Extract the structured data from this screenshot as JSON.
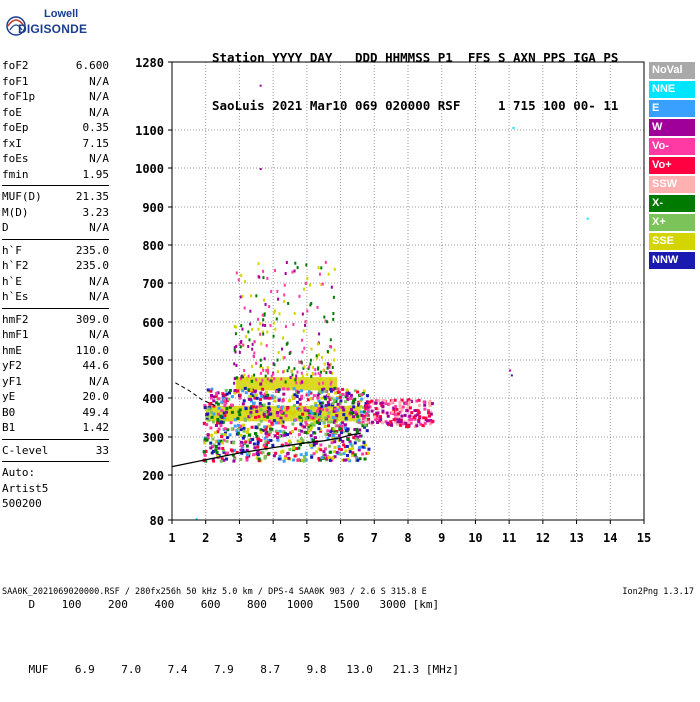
{
  "logo": {
    "brand_line1": "Lowell",
    "brand_line2": "DIGISONDE"
  },
  "header": {
    "line1": "Station YYYY DAY   DDD HHMMSS P1  FFS S AXN PPS IGA PS",
    "line2": "SaoLuis 2021 Mar10 069 020000 RSF     1 715 100 00- 11"
  },
  "parameters": {
    "group1": [
      {
        "name": "foF2",
        "value": "6.600"
      },
      {
        "name": "foF1",
        "value": "N/A"
      },
      {
        "name": "foF1p",
        "value": "N/A"
      },
      {
        "name": "foE",
        "value": "N/A"
      },
      {
        "name": "foEp",
        "value": "0.35"
      },
      {
        "name": "fxI",
        "value": "7.15"
      },
      {
        "name": "foEs",
        "value": "N/A"
      },
      {
        "name": "fmin",
        "value": "1.95"
      }
    ],
    "group2": [
      {
        "name": "MUF(D)",
        "value": "21.35"
      },
      {
        "name": "M(D)",
        "value": "3.23"
      },
      {
        "name": "D",
        "value": "N/A"
      }
    ],
    "group3": [
      {
        "name": "h`F",
        "value": "235.0"
      },
      {
        "name": "h`F2",
        "value": "235.0"
      },
      {
        "name": "h`E",
        "value": "N/A"
      },
      {
        "name": "h`Es",
        "value": "N/A"
      }
    ],
    "group4": [
      {
        "name": "hmF2",
        "value": "309.0"
      },
      {
        "name": "hmF1",
        "value": "N/A"
      },
      {
        "name": "hmE",
        "value": "110.0"
      },
      {
        "name": "yF2",
        "value": "44.6"
      },
      {
        "name": "yF1",
        "value": "N/A"
      },
      {
        "name": "yE",
        "value": "20.0"
      },
      {
        "name": "B0",
        "value": "49.4"
      },
      {
        "name": "B1",
        "value": "1.42"
      }
    ],
    "c_level": {
      "name": "C-level",
      "value": "33"
    },
    "auto_lines": [
      "Auto:",
      "Artist5",
      "500200"
    ]
  },
  "legend": [
    {
      "label": "NoVal",
      "color": "#a9a9a9",
      "text_color": "#ffffff"
    },
    {
      "label": "NNE",
      "color": "#00e5ff",
      "text_color": "#ffffff"
    },
    {
      "label": "E",
      "color": "#3aa0ff",
      "text_color": "#ffffff"
    },
    {
      "label": "W",
      "color": "#a0009a",
      "text_color": "#ffffff"
    },
    {
      "label": "Vo-",
      "color": "#ff3aa5",
      "text_color": "#ffffff"
    },
    {
      "label": "Vo+",
      "color": "#ff0040",
      "text_color": "#ffffff"
    },
    {
      "label": "SSW",
      "color": "#ffb0b0",
      "text_color": "#ffffff"
    },
    {
      "label": "X-",
      "color": "#007a00",
      "text_color": "#ffffff"
    },
    {
      "label": "X+",
      "color": "#7cc35a",
      "text_color": "#ffffff"
    },
    {
      "label": "SSE",
      "color": "#d4d400",
      "text_color": "#ffffff"
    },
    {
      "label": "NNW",
      "color": "#1a1ab0",
      "text_color": "#ffffff"
    }
  ],
  "muf_table": {
    "d_label": "D",
    "d_values": [
      "100",
      "200",
      "400",
      "600",
      "800",
      "1000",
      "1500",
      "3000"
    ],
    "d_unit": "[km]",
    "muf_label": "MUF",
    "muf_values": [
      "6.9",
      "7.0",
      "7.4",
      "7.9",
      "8.7",
      "9.8",
      "13.0",
      "21.3"
    ],
    "muf_unit": "[MHz]"
  },
  "footer": {
    "file_info": "SAA0K_2021069020000.RSF / 280fx256h 50 kHz 5.0 km / DPS-4 SAA0K 903 / 2.6 S 315.8 E",
    "version": "Ion2Png 1.3.17"
  },
  "chart_data": {
    "type": "scatter",
    "x_ticks": [
      1,
      2,
      3,
      4,
      5,
      6,
      7,
      8,
      9,
      10,
      11,
      12,
      13,
      14,
      15
    ],
    "y_ticks": [
      80,
      200,
      300,
      400,
      500,
      600,
      700,
      800,
      900,
      1000,
      1100,
      1280
    ],
    "xlim": [
      1,
      15
    ],
    "y_scale": "piecewise",
    "grid": "dotted",
    "profile_curve": [
      [
        1.0,
        222
      ],
      [
        2.0,
        240
      ],
      [
        3.0,
        258
      ],
      [
        4.0,
        272
      ],
      [
        5.0,
        285
      ],
      [
        5.5,
        290
      ],
      [
        6.0,
        298
      ],
      [
        6.3,
        305
      ],
      [
        6.6,
        310
      ]
    ],
    "dashed_curve": [
      [
        1.1,
        440
      ],
      [
        1.5,
        420
      ],
      [
        1.9,
        395
      ],
      [
        2.3,
        380
      ]
    ],
    "echo_clusters": [
      {
        "x": [
          1.9,
          6.8
        ],
        "y": [
          240,
          430
        ],
        "colors": [
          "#a0009a",
          "#ff0040",
          "#ff3aa5",
          "#007a00",
          "#d4d400",
          "#3aa0ff",
          "#1a1ab0",
          "#7cc35a"
        ]
      },
      {
        "x": [
          6.7,
          8.7
        ],
        "y": [
          330,
          400
        ],
        "colors": [
          "#ff0040",
          "#ff3aa5",
          "#ffb0b0",
          "#a0009a"
        ]
      },
      {
        "x": [
          2.8,
          5.8
        ],
        "y": [
          440,
          760
        ],
        "colors": [
          "#d4d400",
          "#a0009a",
          "#ff3aa5",
          "#007a00"
        ]
      }
    ],
    "highlight_bands": [
      {
        "x": [
          2.9,
          5.9
        ],
        "y": [
          420,
          455
        ],
        "color": "#d4d400"
      },
      {
        "x": [
          2.0,
          6.6
        ],
        "y": [
          340,
          380
        ],
        "color": "#d4d400"
      }
    ],
    "isolated_points": [
      {
        "x": 11.1,
        "y": 1108,
        "color": "#00e5ff"
      },
      {
        "x": 13.3,
        "y": 872,
        "color": "#00e5ff"
      },
      {
        "x": 3.6,
        "y": 1220,
        "color": "#a0009a"
      },
      {
        "x": 3.6,
        "y": 1000,
        "color": "#a0009a"
      },
      {
        "x": 11.0,
        "y": 475,
        "color": "#a0009a"
      },
      {
        "x": 11.05,
        "y": 462,
        "color": "#1a1ab0"
      },
      {
        "x": 1.7,
        "y": 85,
        "color": "#00e5ff"
      }
    ]
  }
}
